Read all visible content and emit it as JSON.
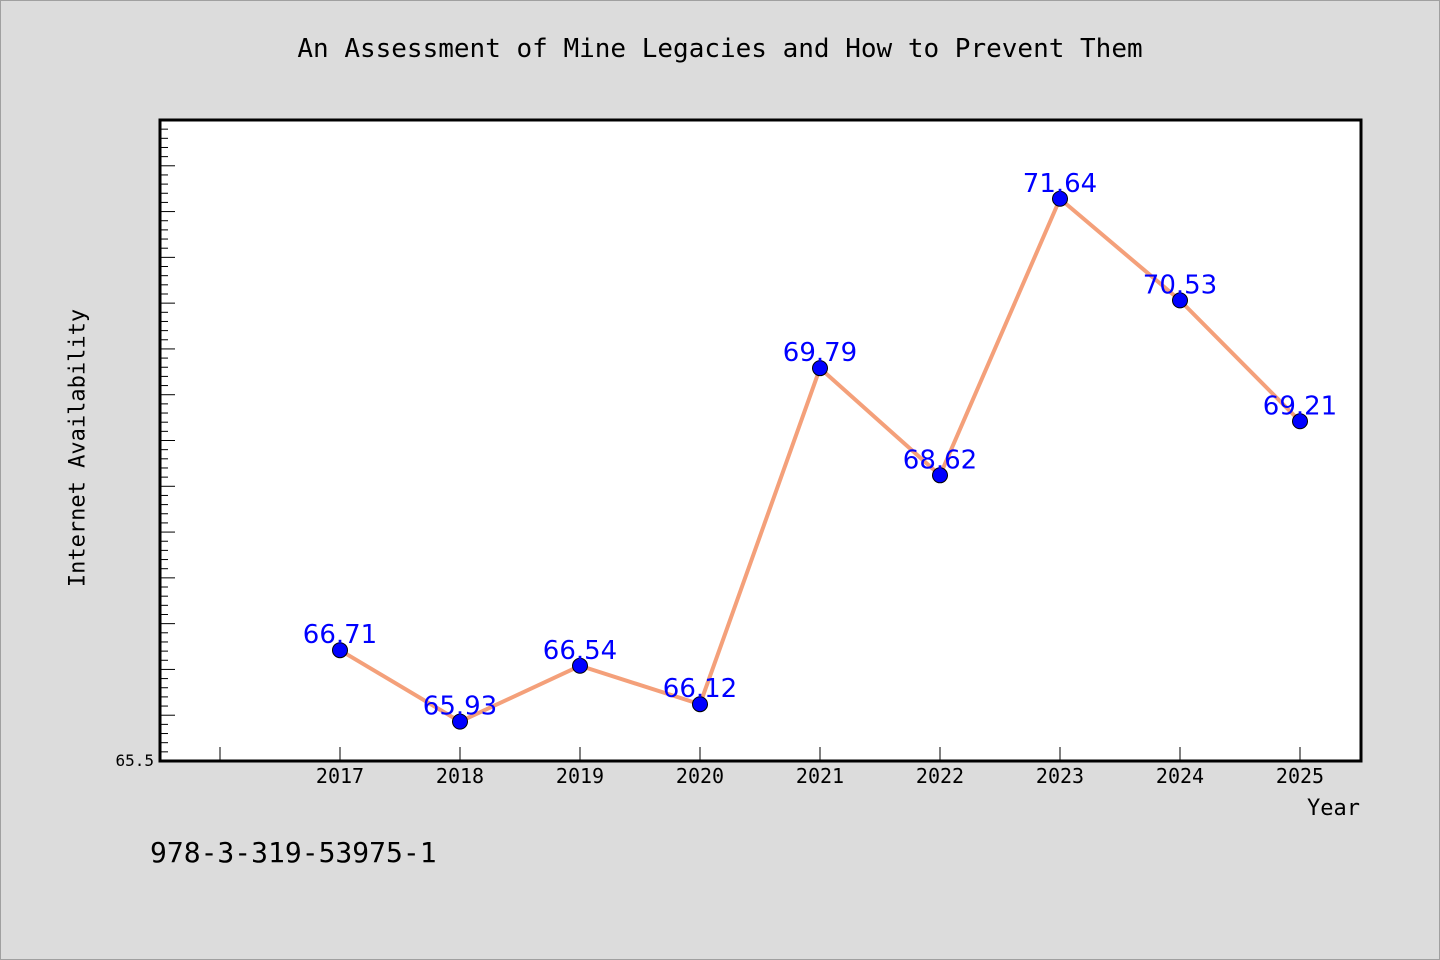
{
  "title": "An Assessment of Mine Legacies and How to Prevent Them",
  "footer_text": "978-3-319-53975-1",
  "colors": {
    "background": "#dcdcdc",
    "plot_background": "#ffffff",
    "line": "#f4a07a",
    "marker": "#0000ff",
    "data_label": "#0000ff"
  },
  "chart_data": {
    "type": "line",
    "title": "An Assessment of Mine Legacies and How to Prevent Them",
    "xlabel": "Year",
    "ylabel": "Internet Availability",
    "categories": [
      "2017",
      "2018",
      "2019",
      "2020",
      "2021",
      "2022",
      "2023",
      "2024",
      "2025"
    ],
    "series": [
      {
        "values": [
          66.71,
          65.93,
          66.54,
          66.12,
          69.79,
          68.62,
          71.64,
          70.53,
          69.21
        ]
      }
    ],
    "ylim": [
      65.5,
      72.5
    ],
    "y_tick_label_shown": "65.5",
    "grid": false,
    "legend": "none",
    "data_labels": true
  }
}
